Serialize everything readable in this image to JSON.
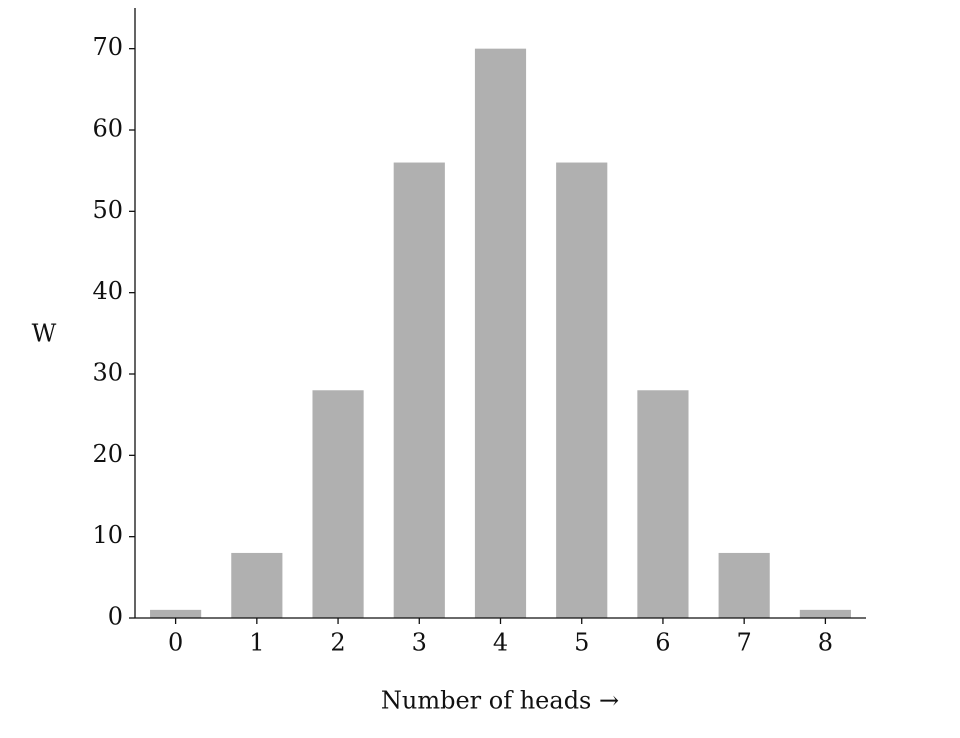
{
  "chart_data": {
    "type": "bar",
    "x_label": "Number of heads →",
    "y_label": "W",
    "categories": [
      "0",
      "1",
      "2",
      "3",
      "4",
      "5",
      "6",
      "7",
      "8"
    ],
    "values": [
      1,
      8,
      28,
      56,
      70,
      56,
      28,
      8,
      1
    ],
    "color": "#b0b0b0",
    "ylim": [
      0,
      75
    ],
    "yticks": [
      0,
      10,
      20,
      30,
      40,
      50,
      60,
      70
    ],
    "grid": false
  }
}
